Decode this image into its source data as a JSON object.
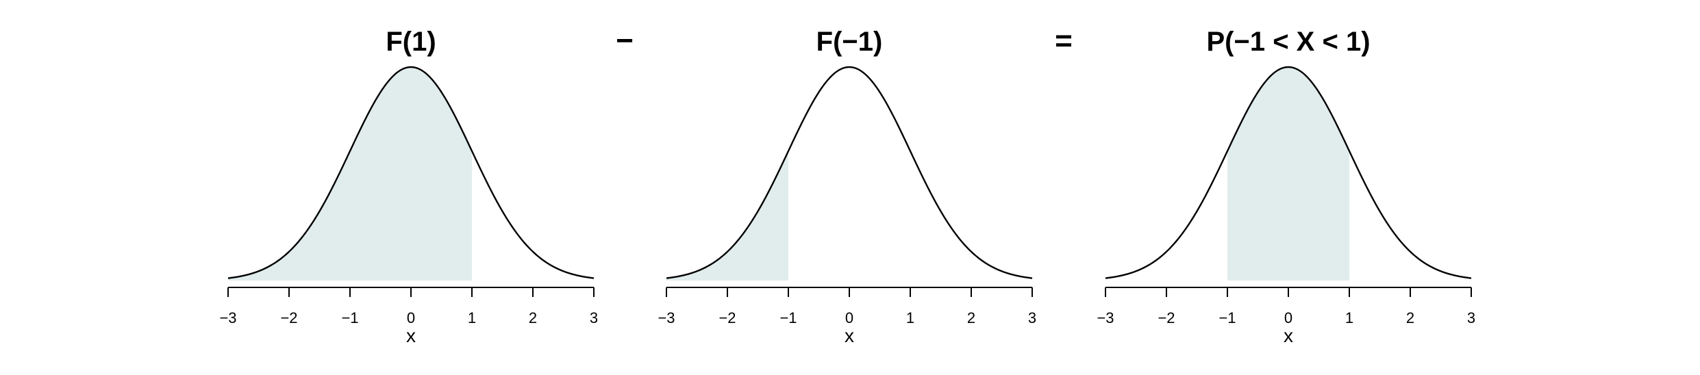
{
  "chart_data": [
    {
      "type": "area",
      "title": "F(1)",
      "xlabel": "x",
      "x_range": [
        -3,
        3
      ],
      "x_ticks": [
        "−3",
        "−2",
        "−1",
        "0",
        "1",
        "2",
        "3"
      ],
      "x_tick_values": [
        -3,
        -2,
        -1,
        0,
        1,
        2,
        3
      ],
      "curve": "standard normal density",
      "shaded_interval": [
        -3,
        1
      ],
      "fill_color": "#e1ecec"
    },
    {
      "type": "area",
      "title": "F(−1)",
      "xlabel": "x",
      "x_range": [
        -3,
        3
      ],
      "x_ticks": [
        "−3",
        "−2",
        "−1",
        "0",
        "1",
        "2",
        "3"
      ],
      "x_tick_values": [
        -3,
        -2,
        -1,
        0,
        1,
        2,
        3
      ],
      "curve": "standard normal density",
      "shaded_interval": [
        -3,
        -1
      ],
      "fill_color": "#e1ecec"
    },
    {
      "type": "area",
      "title": "P(−1 < X < 1)",
      "xlabel": "x",
      "x_range": [
        -3,
        3
      ],
      "x_ticks": [
        "−3",
        "−2",
        "−1",
        "0",
        "1",
        "2",
        "3"
      ],
      "x_tick_values": [
        -3,
        -2,
        -1,
        0,
        1,
        2,
        3
      ],
      "curve": "standard normal density",
      "shaded_interval": [
        -1,
        1
      ],
      "fill_color": "#e1ecec"
    }
  ],
  "operators": [
    "−",
    "="
  ]
}
